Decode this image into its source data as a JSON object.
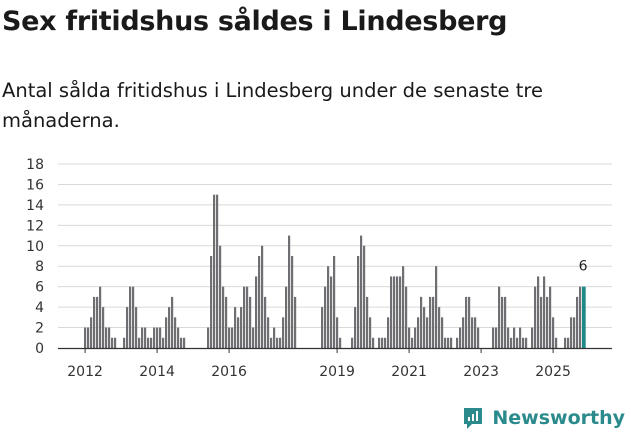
{
  "title": "Sex fritidshus såldes i Lindesberg",
  "subtitle": "Antal sålda fritidshus i Lindesberg under de senaste tre månaderna.",
  "brand": {
    "name": "Newsworthy",
    "icon": "newsworthy-logo-icon",
    "color": "#2a8a8c"
  },
  "colors": {
    "bar": "#6e6e73",
    "highlight": "#1e8a87",
    "grid": "#d9d9d9",
    "axis": "#333333"
  },
  "chart_data": {
    "type": "bar",
    "title": "Antal sålda fritidshus i Lindesberg",
    "xlabel": "",
    "ylabel": "",
    "ylim": [
      0,
      18
    ],
    "yticks": [
      "0",
      "2",
      "4",
      "6",
      "8",
      "10",
      "12",
      "14",
      "16",
      "18"
    ],
    "start": "2012-01",
    "xticks": [
      {
        "label": "2012",
        "month_index": 0
      },
      {
        "label": "2014",
        "month_index": 24
      },
      {
        "label": "2016",
        "month_index": 48
      },
      {
        "label": "2019",
        "month_index": 84
      },
      {
        "label": "2021",
        "month_index": 108
      },
      {
        "label": "2023",
        "month_index": 132
      },
      {
        "label": "2025",
        "month_index": 156
      }
    ],
    "values": [
      2,
      2,
      3,
      5,
      5,
      6,
      4,
      2,
      2,
      1,
      1,
      0,
      0,
      1,
      4,
      6,
      6,
      4,
      1,
      2,
      2,
      1,
      1,
      2,
      2,
      2,
      1,
      3,
      4,
      5,
      3,
      2,
      1,
      1,
      0,
      0,
      0,
      0,
      0,
      0,
      0,
      2,
      9,
      15,
      15,
      10,
      6,
      5,
      2,
      2,
      4,
      3,
      4,
      6,
      6,
      5,
      2,
      7,
      9,
      10,
      5,
      3,
      1,
      2,
      1,
      1,
      3,
      6,
      11,
      9,
      5,
      0,
      0,
      0,
      0,
      0,
      0,
      0,
      0,
      4,
      6,
      8,
      7,
      9,
      3,
      1,
      0,
      0,
      0,
      1,
      4,
      9,
      11,
      10,
      5,
      3,
      1,
      0,
      1,
      1,
      1,
      3,
      7,
      7,
      7,
      7,
      8,
      6,
      2,
      1,
      2,
      3,
      5,
      4,
      3,
      5,
      5,
      8,
      4,
      3,
      1,
      1,
      1,
      0,
      1,
      2,
      3,
      5,
      5,
      3,
      3,
      2,
      0,
      0,
      0,
      0,
      2,
      2,
      6,
      5,
      5,
      2,
      1,
      2,
      1,
      2,
      1,
      1,
      0,
      2,
      6,
      7,
      5,
      7,
      5,
      6,
      3,
      1,
      0,
      0,
      1,
      1,
      3,
      3,
      5,
      6,
      6
    ],
    "highlight_last": true,
    "last_value_label": "6"
  }
}
